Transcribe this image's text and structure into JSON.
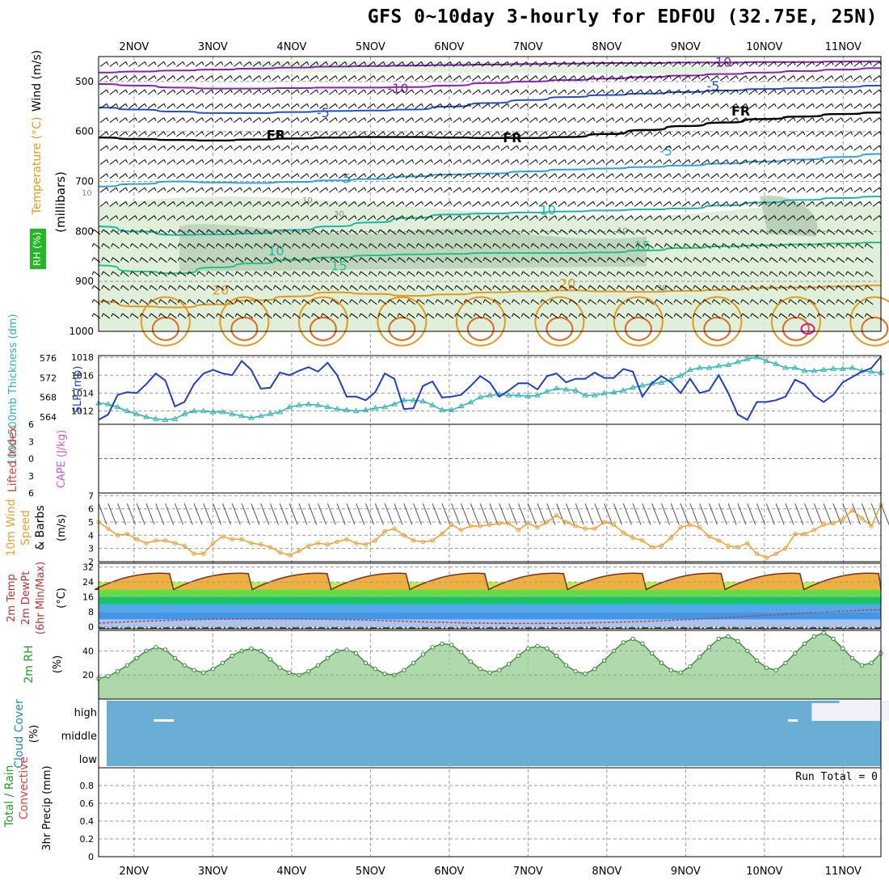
{
  "title": "GFS 0~10day 3-hourly for EDFOU (32.75E, 25N)",
  "colors": {
    "black": "#000000",
    "grid": "#9a9a9a",
    "rh_green": "#d9ecd3",
    "rh_dark": "#a9c5a9",
    "purple": "#8a1fb5",
    "blue": "#1f4fd0",
    "cyan": "#2aa3d8",
    "teal": "#19b7a6",
    "green": "#22c08a",
    "orange": "#e39a1a",
    "darkorange": "#e0691a",
    "magenta": "#e0108a",
    "slp": "#1f3fc8",
    "thick": "#2ab5b5",
    "orange_line": "#f0a030",
    "cloud_blue": "#6aaed6",
    "cloud_white": "#f2f0f8"
  },
  "chart_data": {
    "type": "meteogram",
    "x_labels": [
      "2NOV",
      "3NOV",
      "4NOV",
      "5NOV",
      "6NOV",
      "7NOV",
      "8NOV",
      "9NOV",
      "10NOV",
      "11NOV"
    ],
    "panels": [
      {
        "name": "upper-air",
        "ylabel_parts": [
          "RH (%)",
          "Temperature (°C)",
          "Wind (m/s)"
        ],
        "ylabel_pressure": "(millibars)",
        "y_ticks": [
          500,
          600,
          700,
          800,
          900,
          1000
        ],
        "ylim": [
          450,
          1000
        ],
        "contour_labels": [
          {
            "text": "-10",
            "day": 8.45,
            "p": 462,
            "color": "purple"
          },
          {
            "text": "-10",
            "day": 4.35,
            "p": 515,
            "color": "purple"
          },
          {
            "text": "-5",
            "day": 8.35,
            "p": 510,
            "color": "blue"
          },
          {
            "text": "-5",
            "day": 3.4,
            "p": 563,
            "color": "blue"
          },
          {
            "text": "FR",
            "day": 2.8,
            "p": 608,
            "color": "black"
          },
          {
            "text": "FR",
            "day": 5.8,
            "p": 613,
            "color": "black"
          },
          {
            "text": "FR",
            "day": 8.7,
            "p": 560,
            "color": "black"
          },
          {
            "text": "-5",
            "day": 7.75,
            "p": 640,
            "color": "cyan"
          },
          {
            "text": "5",
            "day": 3.7,
            "p": 695,
            "color": "cyan"
          },
          {
            "text": "10",
            "day": 6.25,
            "p": 758,
            "color": "teal"
          },
          {
            "text": "10",
            "day": 2.8,
            "p": 840,
            "color": "teal"
          },
          {
            "text": "15",
            "day": 3.6,
            "p": 870,
            "color": "green"
          },
          {
            "text": "15",
            "day": 7.45,
            "p": 830,
            "color": "green"
          },
          {
            "text": "20",
            "day": 2.1,
            "p": 918,
            "color": "orange"
          },
          {
            "text": "20",
            "day": 6.5,
            "p": 905,
            "color": "orange"
          },
          {
            "text": "10",
            "day": 0.4,
            "p": 720,
            "color": "grey"
          },
          {
            "text": "10",
            "day": 3.2,
            "p": 735,
            "color": "grey"
          },
          {
            "text": "30",
            "day": 3.6,
            "p": 762,
            "color": "grey"
          },
          {
            "text": "10",
            "day": 7.2,
            "p": 795,
            "color": "grey"
          },
          {
            "text": "30",
            "day": 7.7,
            "p": 910,
            "color": "grey"
          }
        ],
        "isotherms": [
          {
            "name": "-10 upper",
            "color": "purple",
            "p": [
              482,
              480,
              478,
              476,
              474,
              472,
              470,
              469,
              468,
              467,
              466,
              465,
              464,
              463,
              463,
              462,
              462,
              461,
              461,
              460,
              460
            ]
          },
          {
            "name": "-10 lower",
            "color": "purple",
            "p": [
              505,
              508,
              512,
              514,
              514,
              513,
              512,
              512,
              511,
              508,
              503,
              500,
              497,
              494,
              491,
              488,
              485,
              482,
              479,
              476,
              473
            ]
          },
          {
            "name": "-5",
            "color": "blue",
            "p": [
              552,
              556,
              560,
              563,
              563,
              561,
              559,
              558,
              556,
              550,
              543,
              537,
              531,
              527,
              524,
              521,
              518,
              515,
              513,
              511,
              508
            ]
          },
          {
            "name": "FR",
            "color": "black",
            "p": [
              612,
              615,
              617,
              618,
              616,
              614,
              612,
              611,
              611,
              612,
              613,
              613,
              611,
              605,
              597,
              589,
              582,
              575,
              570,
              565,
              562
            ]
          },
          {
            "name": "5",
            "color": "cyan",
            "p": [
              710,
              705,
              700,
              702,
              703,
              701,
              698,
              695,
              690,
              686,
              684,
              680,
              676,
              674,
              671,
              668,
              664,
              660,
              656,
              651,
              645
            ]
          },
          {
            "name": "10",
            "color": "teal",
            "p": [
              790,
              800,
              807,
              806,
              804,
              797,
              790,
              782,
              773,
              766,
              764,
              762,
              760,
              758,
              756,
              754,
              748,
              742,
              737,
              733,
              730
            ]
          },
          {
            "name": "15",
            "color": "green",
            "p": [
              868,
              880,
              884,
              872,
              864,
              857,
              852,
              848,
              846,
              845,
              843,
              843,
              843,
              842,
              838,
              833,
              830,
              828,
              826,
              824,
              822
            ]
          },
          {
            "name": "20",
            "color": "orange",
            "p": [
              940,
              950,
              952,
              946,
              938,
              930,
              922,
              925,
              929,
              926,
              922,
              920,
              918,
              920,
              921,
              919,
              917,
              913,
              912,
              910,
              908
            ]
          }
        ]
      },
      {
        "name": "slp-thickness",
        "ylabel_left": "1000-500mb Thickness (dm)",
        "ylabel_right": "SLP (mb)",
        "thickness_ticks": [
          564,
          568,
          572,
          576
        ],
        "slp_ticks": [
          1012,
          1014,
          1016,
          1018
        ],
        "slp_ylim": [
          1010.5,
          1018.2
        ],
        "slp": [
          1011.0,
          1011.6,
          1013.8,
          1014.1,
          1014.0,
          1015.0,
          1016.2,
          1015.4,
          1012.5,
          1013.0,
          1015.0,
          1016.2,
          1016.6,
          1016.2,
          1016.0,
          1017.6,
          1016.6,
          1014.5,
          1014.6,
          1016.3,
          1016.0,
          1016.5,
          1016.9,
          1016.4,
          1017.4,
          1016.0,
          1013.6,
          1013.6,
          1013.2,
          1014.1,
          1016.2,
          1015.6,
          1012.2,
          1012.3,
          1014.8,
          1015.3,
          1013.5,
          1013.6,
          1013.8,
          1014.8,
          1015.9,
          1015.2,
          1013.6,
          1014.3,
          1015.1,
          1015.1,
          1014.4,
          1015.9,
          1016.2,
          1015.2,
          1015.6,
          1015.6,
          1016.3,
          1015.7,
          1015.7,
          1016.7,
          1016.4,
          1013.6,
          1015.1,
          1015.9,
          1015.2,
          1014.0,
          1015.6,
          1014.0,
          1014.3,
          1016.0,
          1014.0,
          1011.6,
          1011.0,
          1013.0,
          1013.0,
          1013.2,
          1013.6,
          1015.5,
          1015.0,
          1013.7,
          1013.0,
          1013.8,
          1015.2,
          1015.8,
          1016.4,
          1016.8,
          1018.1
        ],
        "thickness": [
          566.8,
          566.6,
          566.0,
          565.2,
          564.6,
          564.0,
          563.6,
          563.4,
          563.6,
          564.6,
          565.2,
          565.2,
          565.0,
          565.0,
          564.6,
          564.2,
          563.8,
          564.2,
          564.6,
          565.0,
          566.0,
          566.4,
          566.6,
          566.4,
          566.0,
          565.6,
          565.4,
          565.2,
          565.4,
          565.8,
          566.0,
          566.6,
          567.4,
          567.4,
          567.2,
          566.4,
          565.4,
          565.4,
          566.2,
          567.0,
          568.0,
          568.4,
          568.6,
          568.4,
          568.4,
          568.2,
          568.4,
          569.2,
          569.8,
          569.6,
          569.4,
          568.4,
          568.4,
          568.8,
          569.0,
          569.4,
          570.0,
          570.4,
          570.8,
          571.0,
          571.6,
          572.4,
          573.6,
          574.0,
          574.0,
          574.4,
          574.6,
          575.2,
          575.8,
          576.2,
          575.4,
          574.8,
          574.0,
          574.0,
          573.4,
          573.4,
          573.6,
          573.8,
          573.8,
          574.0,
          573.4,
          573.2,
          573.0
        ],
        "thickness_ylim": [
          562.5,
          576.5
        ]
      },
      {
        "name": "stability",
        "ylabel_left": "Lifted Index",
        "ylabel_right": "CAPE (J/kg)",
        "y_ticks": [
          "6",
          "3",
          "0",
          "3",
          "6"
        ]
      },
      {
        "name": "wind10m",
        "ylabel": "10m Wind Speed & Barbs",
        "ylabel_units": "(m/s)",
        "y_ticks": [
          2,
          3,
          4,
          5,
          6,
          7
        ],
        "ylim": [
          2,
          7.2
        ],
        "speed": [
          5.0,
          4.5,
          4.0,
          4.1,
          3.7,
          3.4,
          3.6,
          3.6,
          3.4,
          3.2,
          2.6,
          2.6,
          3.4,
          3.9,
          3.7,
          3.7,
          3.4,
          3.3,
          3.1,
          2.7,
          2.5,
          2.8,
          3.2,
          3.4,
          3.3,
          3.5,
          3.7,
          3.4,
          3.3,
          3.6,
          4.3,
          4.5,
          4.0,
          3.6,
          3.5,
          3.6,
          4.1,
          4.8,
          4.4,
          4.7,
          4.7,
          4.8,
          4.9,
          4.9,
          4.4,
          4.9,
          4.6,
          5.0,
          5.5,
          5.0,
          4.7,
          4.5,
          4.5,
          5.0,
          4.8,
          4.2,
          3.8,
          3.6,
          3.1,
          3.2,
          3.8,
          4.6,
          4.8,
          4.6,
          3.9,
          3.6,
          3.2,
          3.1,
          3.4,
          2.6,
          2.3,
          2.6,
          3.0,
          4.1,
          4.1,
          4.4,
          4.8,
          4.9,
          5.2,
          5.9,
          5.3,
          4.7,
          6.3
        ]
      },
      {
        "name": "temperature",
        "ylabel": "2m Temp 2m DewPt (6hr Min/Max) (°C)",
        "y_ticks": [
          0,
          8,
          16,
          24,
          32
        ],
        "ylim": [
          -1,
          34
        ]
      },
      {
        "name": "rh2m",
        "ylabel": "2m RH",
        "ylabel_units": "(%)",
        "y_ticks": [
          20,
          40
        ],
        "ylim": [
          0,
          57
        ],
        "rh": [
          17,
          19,
          23,
          28,
          34,
          40,
          43,
          41,
          34,
          28,
          24,
          22,
          25,
          30,
          36,
          40,
          42,
          40,
          33,
          26,
          22,
          20,
          23,
          28,
          34,
          40,
          41,
          38,
          30,
          25,
          21,
          20,
          24,
          30,
          37,
          43,
          46,
          45,
          39,
          31,
          25,
          22,
          24,
          29,
          36,
          42,
          44,
          42,
          36,
          28,
          23,
          21,
          25,
          32,
          40,
          47,
          50,
          46,
          38,
          30,
          24,
          22,
          27,
          35,
          43,
          50,
          52,
          48,
          40,
          32,
          26,
          24,
          30,
          38,
          46,
          52,
          55,
          50,
          42,
          34,
          28,
          30,
          38
        ]
      },
      {
        "name": "cloud",
        "ylabel": "Cloud Cover",
        "ylabel_units": "(%)",
        "levels": [
          "high",
          "middle",
          "low"
        ]
      },
      {
        "name": "precip",
        "ylabel_left": "Total / Rain",
        "ylabel_left2": "Convective",
        "ylabel": "3hr Precip (mm)",
        "y_ticks": [
          "0",
          "0.2",
          "0.4",
          "0.6",
          "0.8"
        ],
        "run_total": "Run Total = 0",
        "values": []
      }
    ]
  }
}
